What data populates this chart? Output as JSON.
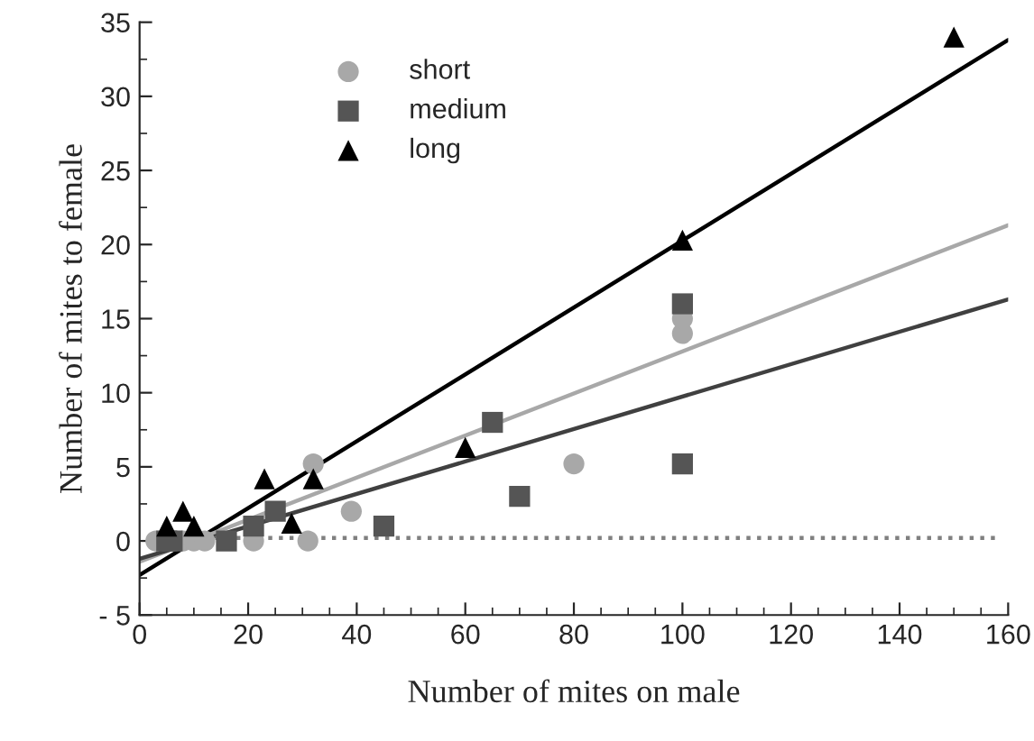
{
  "chart_data": {
    "type": "scatter",
    "xlabel": "Number of mites on male",
    "ylabel": "Number of mites to female",
    "xlim": [
      0,
      160
    ],
    "xticks": [
      0,
      20,
      40,
      60,
      80,
      100,
      120,
      140,
      160
    ],
    "ylim": [
      -5,
      35
    ],
    "yticks": [
      {
        "value": -5,
        "label": "- 5"
      },
      0,
      5,
      10,
      15,
      20,
      25,
      30,
      35
    ],
    "legend": "top left",
    "grid": false,
    "series": [
      {
        "name": "short",
        "marker": "circle",
        "color": "#a8a8a8",
        "x": [
          3,
          8,
          10,
          12,
          21,
          31,
          32,
          39,
          80,
          100,
          100
        ],
        "values": [
          0,
          0,
          0,
          0,
          0,
          0,
          5.2,
          2,
          5.2,
          14,
          15
        ]
      },
      {
        "name": "medium",
        "marker": "square",
        "color": "#555555",
        "x": [
          5,
          6,
          16,
          21,
          25,
          45,
          65,
          70,
          100,
          100
        ],
        "values": [
          0,
          0,
          0,
          1,
          2,
          1,
          8,
          3,
          16,
          5.2
        ]
      },
      {
        "name": "long",
        "marker": "triangle",
        "color": "#000000",
        "x": [
          5,
          8,
          10,
          23,
          28,
          32,
          60,
          100,
          150
        ],
        "values": [
          1,
          2,
          1,
          4.2,
          1.2,
          4.2,
          6.3,
          20.3,
          34
        ]
      },
      {
        "type": "line",
        "line_style": "solid",
        "color": "#000000",
        "x": [
          0,
          160
        ],
        "values": [
          -2.3,
          33.8
        ]
      },
      {
        "type": "line",
        "line_style": "solid",
        "color": "#a8a8a8",
        "x": [
          0,
          160
        ],
        "values": [
          -1.4,
          21.3
        ]
      },
      {
        "type": "line",
        "line_style": "solid",
        "color": "#404040",
        "x": [
          0,
          160
        ],
        "values": [
          -1.2,
          16.3
        ]
      },
      {
        "type": "line",
        "line_style": "dotted",
        "color": "#808080",
        "x": [
          10,
          158
        ],
        "values": [
          0.2,
          0.2
        ]
      }
    ]
  }
}
